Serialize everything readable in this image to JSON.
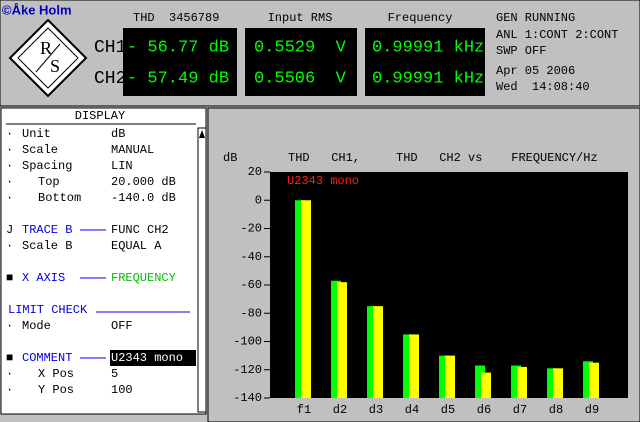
{
  "copyright": "©Åke Holm",
  "readouts": {
    "headers": [
      "THD  3456789",
      "Input RMS",
      "Frequency"
    ],
    "channels": [
      "CH1",
      "CH2"
    ],
    "ch1": [
      "- 56.77 dB",
      "0.5529  V",
      "0.99991 kHz"
    ],
    "ch2": [
      "- 57.49 dB",
      "0.5506  V",
      "0.99991 kHz"
    ]
  },
  "status": [
    "GEN RUNNING",
    "ANL 1:CONT 2:CONT",
    "SWP OFF",
    "Apr 05 2006",
    "Wed  14:08:40"
  ],
  "panel": {
    "title": "DISPLAY",
    "rows": [
      [
        "Unit",
        "dB"
      ],
      [
        "Scale",
        "MANUAL"
      ],
      [
        "Spacing",
        "LIN"
      ],
      [
        "Top",
        "20.000 dB"
      ],
      [
        "Bottom",
        "-140.0 dB"
      ],
      [
        "TRACE B",
        "FUNC CH2"
      ],
      [
        "Scale B",
        "EQUAL A"
      ],
      [
        "X AXIS",
        "FREQUENCY"
      ],
      [
        "LIMIT CHECK"
      ],
      [
        "Mode",
        "OFF"
      ],
      [
        "COMMENT",
        "U2343 mono"
      ],
      [
        "X Pos",
        "5"
      ],
      [
        "Y Pos",
        "100"
      ]
    ]
  },
  "chart_data": {
    "type": "bar",
    "y_label": "dB",
    "title": "THD   CH1,     THD   CH2 vs    FREQUENCY/Hz",
    "annotation": "U2343 mono",
    "categories": [
      "f1",
      "d2",
      "d3",
      "d4",
      "d5",
      "d6",
      "d7",
      "d8",
      "d9"
    ],
    "series": [
      {
        "color": "#00ff00",
        "values": [
          0,
          -57,
          -75,
          -95,
          -110,
          -117,
          -117,
          -119,
          -114
        ]
      },
      {
        "color": "#ffff00",
        "values": [
          0,
          -58,
          -75,
          -95,
          -110,
          -122,
          -118,
          -119,
          -115
        ]
      }
    ],
    "ylim": [
      -140,
      20
    ],
    "yticks": [
      20,
      0,
      -20,
      -40,
      -60,
      -80,
      -100,
      -120,
      -140
    ]
  }
}
